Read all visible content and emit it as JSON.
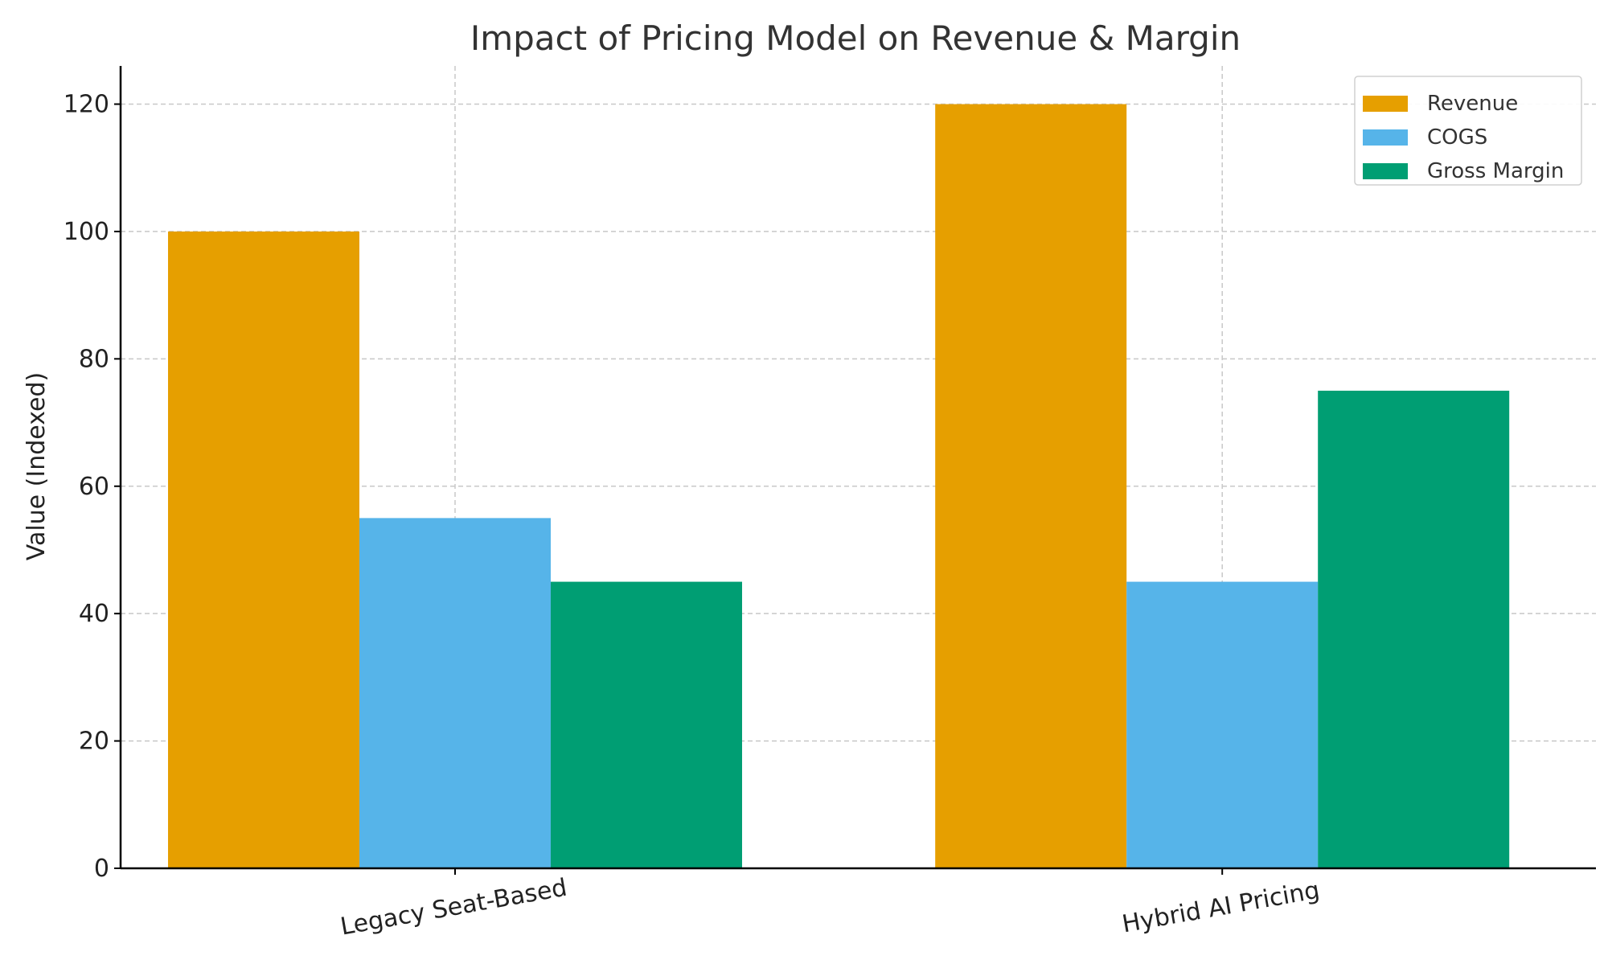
{
  "chart_data": {
    "type": "bar",
    "title": "Impact of Pricing Model on Revenue & Margin",
    "xlabel": "",
    "ylabel": "Value (Indexed)",
    "categories": [
      "Legacy Seat-Based",
      "Hybrid AI Pricing"
    ],
    "series": [
      {
        "name": "Revenue",
        "values": [
          100,
          120
        ],
        "color": "#E69F00"
      },
      {
        "name": "COGS",
        "values": [
          55,
          45
        ],
        "color": "#56B4E9"
      },
      {
        "name": "Gross Margin",
        "values": [
          45,
          75
        ],
        "color": "#009E73"
      }
    ],
    "ylim": [
      0,
      126
    ],
    "yticks": [
      0,
      20,
      40,
      60,
      80,
      100,
      120
    ],
    "grid": true,
    "legend_position": "top-right"
  }
}
